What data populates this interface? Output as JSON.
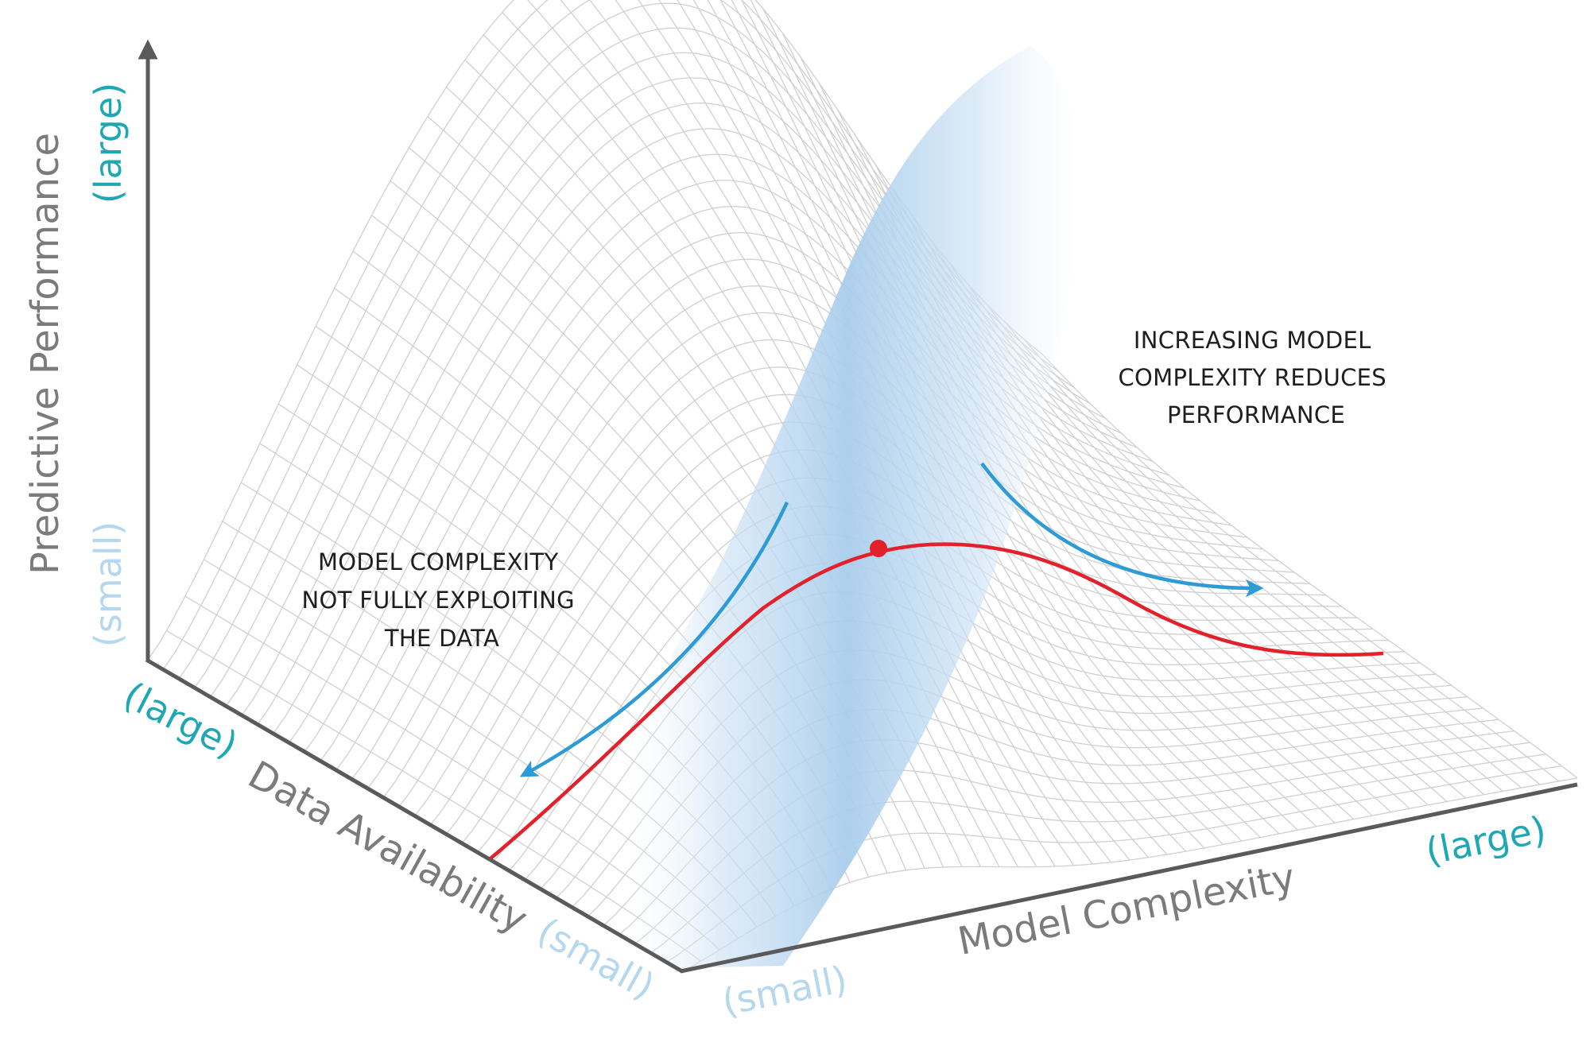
{
  "axes": {
    "vertical": {
      "title": "Predictive Performance",
      "high": "(large)",
      "low": "(small)"
    },
    "depth": {
      "title": "Data Availability",
      "high": "(large)",
      "low": "(small)"
    },
    "horizontal": {
      "title": "Model Complexity",
      "high": "(large)",
      "low": "(small)"
    }
  },
  "annotations": {
    "left": [
      "MODEL COMPLEXITY",
      "NOT FULLY EXPLOITING",
      "THE DATA"
    ],
    "right": [
      "INCREASING MODEL",
      "COMPLEXITY REDUCES",
      "PERFORMANCE"
    ]
  },
  "colors": {
    "axis": "#5a5a5a",
    "mesh": "#d0d0d0",
    "band": "#a9cdec",
    "curve": "#e3212b",
    "arrow": "#2c9bd6",
    "label_large": "#1fa8b4",
    "label_small": "#b6d8ef",
    "axis_title": "#7b7b7b"
  }
}
